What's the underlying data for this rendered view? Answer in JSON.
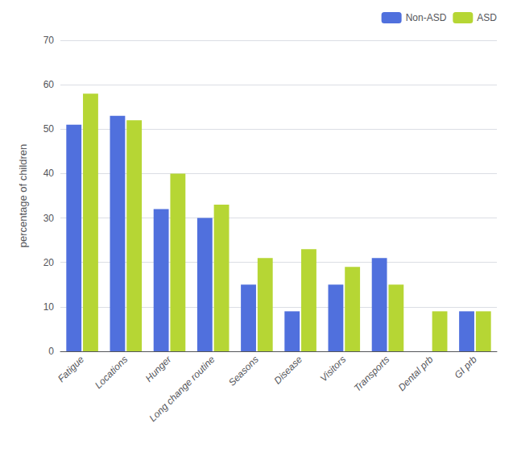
{
  "chart_data": {
    "type": "bar",
    "categories": [
      "Fatigue",
      "Locations",
      "Hunger",
      "Long change routine",
      "Seasons",
      "Disease",
      "Visitors",
      "Transports",
      "Dental prb",
      "GI prb"
    ],
    "series": [
      {
        "name": "Non-ASD",
        "values": [
          51,
          53,
          32,
          30,
          15,
          9,
          15,
          21,
          0,
          9
        ]
      },
      {
        "name": "ASD",
        "values": [
          58,
          52,
          40,
          33,
          21,
          23,
          19,
          15,
          9,
          9
        ]
      }
    ],
    "ylabel": "percentage of children",
    "ylim": [
      0,
      70
    ],
    "yticks": [
      0,
      10,
      20,
      30,
      40,
      50,
      60,
      70
    ],
    "grid": true,
    "legend": "upper right"
  }
}
